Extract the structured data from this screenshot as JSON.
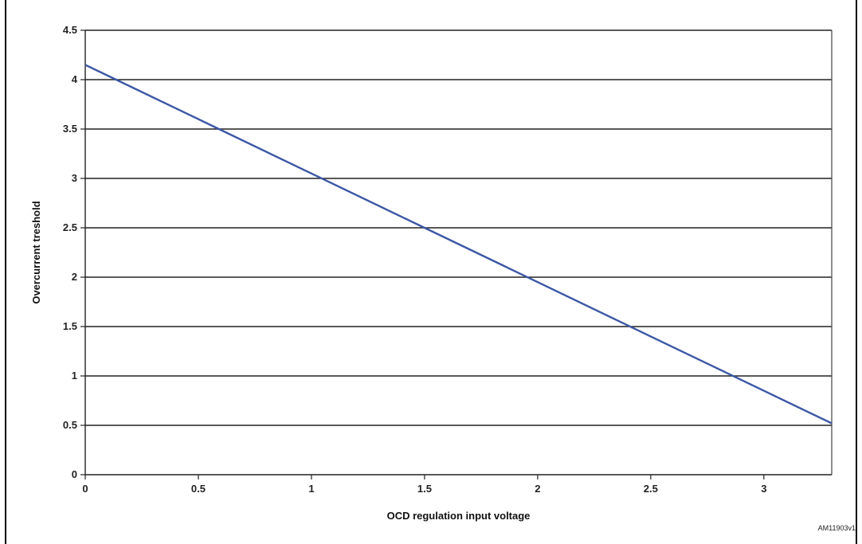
{
  "figure": {
    "clipped_title": "",
    "figure_id": "AM11903v1"
  },
  "chart_data": {
    "type": "line",
    "title": "",
    "xlabel": "OCD regulation input voltage",
    "ylabel": "Overcurrent  treshold",
    "xlim": [
      0,
      3.3
    ],
    "ylim": [
      0,
      4.5
    ],
    "xticks": [
      0,
      0.5,
      1,
      1.5,
      2,
      2.5,
      3
    ],
    "xtick_labels": [
      "0",
      "0.5",
      "1",
      "1.5",
      "2",
      "2.5",
      "3"
    ],
    "yticks": [
      0,
      0.5,
      1,
      1.5,
      2,
      2.5,
      3,
      3.5,
      4,
      4.5
    ],
    "ytick_labels": [
      "0",
      "0.5",
      "1",
      "1.5",
      "2",
      "2.5",
      "3",
      "3.5",
      "4",
      "4.5"
    ],
    "grid": "horizontal",
    "legend": "none",
    "series": [
      {
        "color": "#3b57a6",
        "x": [
          0,
          0.5,
          1,
          1.5,
          2,
          2.5,
          3,
          3.3
        ],
        "y": [
          4.15,
          3.6,
          3.05,
          2.5,
          1.95,
          1.4,
          0.85,
          0.52
        ]
      }
    ]
  }
}
